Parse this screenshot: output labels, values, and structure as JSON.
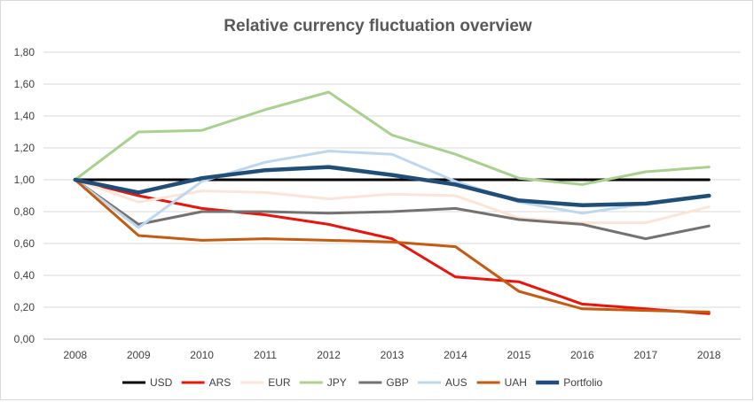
{
  "chart_data": {
    "type": "line",
    "title": "Relative currency fluctuation overview",
    "xlabel": "",
    "ylabel": "",
    "x": [
      "2008",
      "2009",
      "2010",
      "2011",
      "2012",
      "2013",
      "2014",
      "2015",
      "2016",
      "2017",
      "2018"
    ],
    "ylim": [
      0,
      1.8
    ],
    "yticks": [
      "0,00",
      "0,20",
      "0,40",
      "0,60",
      "0,80",
      "1,00",
      "1,20",
      "1,40",
      "1,60",
      "1,80"
    ],
    "grid": "horizontal",
    "legend_position": "bottom",
    "series": [
      {
        "name": "USD",
        "color": "#000000",
        "width": 3,
        "values": [
          1.0,
          1.0,
          1.0,
          1.0,
          1.0,
          1.0,
          1.0,
          1.0,
          1.0,
          1.0,
          1.0
        ]
      },
      {
        "name": "ARS",
        "color": "#e8140e",
        "width": 3,
        "values": [
          1.0,
          0.9,
          0.82,
          0.78,
          0.72,
          0.63,
          0.39,
          0.36,
          0.22,
          0.19,
          0.16
        ]
      },
      {
        "name": "EUR",
        "color": "#fce4d6",
        "width": 3,
        "values": [
          1.0,
          0.86,
          0.93,
          0.92,
          0.88,
          0.91,
          0.9,
          0.76,
          0.73,
          0.73,
          0.83
        ]
      },
      {
        "name": "JPY",
        "color": "#a9d18e",
        "width": 3,
        "values": [
          1.0,
          1.3,
          1.31,
          1.44,
          1.55,
          1.28,
          1.16,
          1.01,
          0.97,
          1.05,
          1.08
        ]
      },
      {
        "name": "GBP",
        "color": "#767171",
        "width": 3,
        "values": [
          1.0,
          0.72,
          0.8,
          0.8,
          0.79,
          0.8,
          0.82,
          0.75,
          0.72,
          0.63,
          0.71
        ]
      },
      {
        "name": "AUS",
        "color": "#bdd7ee",
        "width": 3,
        "values": [
          1.0,
          0.7,
          0.99,
          1.11,
          1.18,
          1.16,
          0.99,
          0.86,
          0.79,
          0.85,
          0.9
        ]
      },
      {
        "name": "UAH",
        "color": "#c55a11",
        "width": 3,
        "values": [
          1.0,
          0.65,
          0.62,
          0.63,
          0.62,
          0.61,
          0.58,
          0.3,
          0.19,
          0.18,
          0.17
        ]
      },
      {
        "name": "Portfolio",
        "color": "#1f4e79",
        "width": 4.5,
        "values": [
          1.0,
          0.92,
          1.01,
          1.06,
          1.08,
          1.03,
          0.97,
          0.87,
          0.84,
          0.85,
          0.9
        ]
      }
    ]
  }
}
